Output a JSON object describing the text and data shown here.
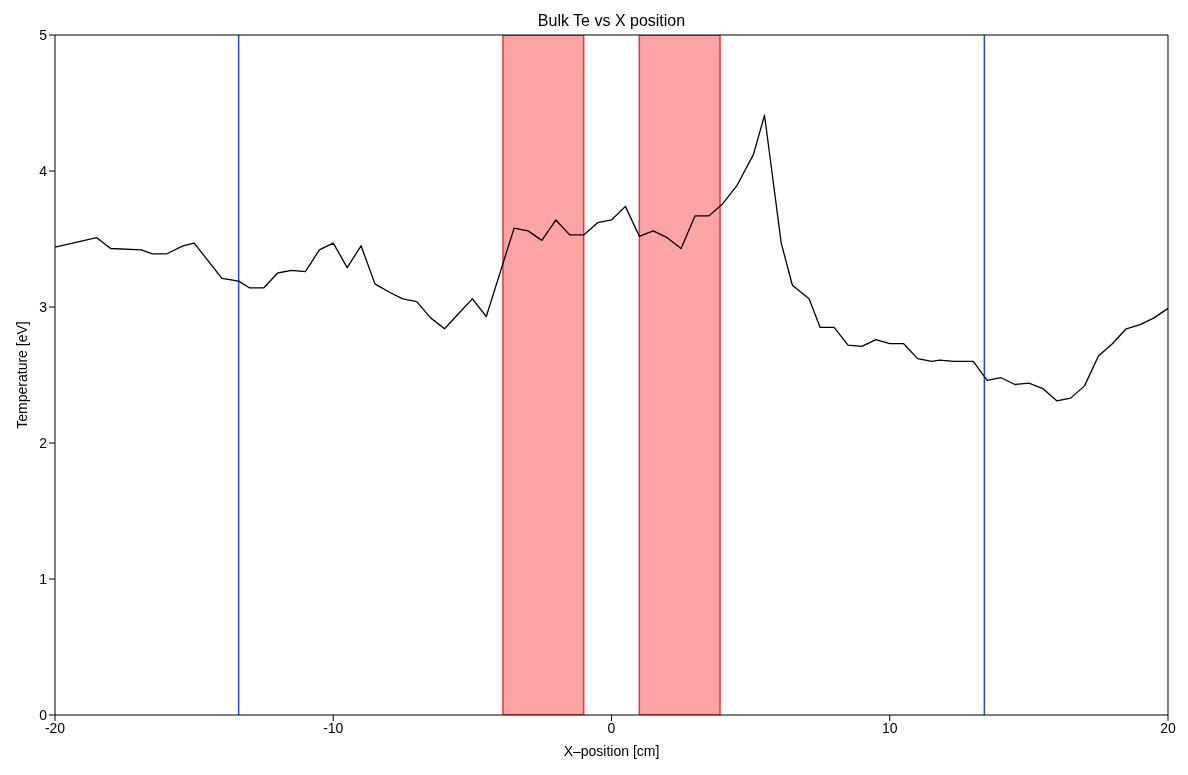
{
  "chart_data": {
    "type": "line",
    "title": "Bulk Te vs X position",
    "xlabel": "X–position [cm]",
    "ylabel": "Temperature [eV]",
    "xlim": [
      -20,
      20
    ],
    "xticks": [
      -20,
      -10,
      0,
      10,
      20
    ],
    "ylim": [
      0,
      5
    ],
    "yticks": [
      0,
      1,
      2,
      3,
      4,
      5
    ],
    "grid": false,
    "marker": "none",
    "line_style": "solid",
    "series": [
      {
        "color": "#000000",
        "x": [
          -20,
          -18.5,
          -18,
          -16.9,
          -16.5,
          -16,
          -15.4,
          -15,
          -14,
          -13.4,
          -13,
          -12.5,
          -12,
          -11.5,
          -11,
          -10.5,
          -10,
          -9.5,
          -9,
          -8.5,
          -8,
          -7.5,
          -7,
          -6.5,
          -6,
          -5.5,
          -5,
          -4.5,
          -3.5,
          -3,
          -2.5,
          -2,
          -1.5,
          -1,
          -0.5,
          0,
          0.5,
          1,
          1.5,
          2,
          2.5,
          3,
          3.5,
          4,
          4.5,
          5.1,
          5.5,
          6.1,
          6.5,
          7.1,
          7.5,
          8,
          8.5,
          9,
          9.5,
          10,
          10.5,
          11,
          11.5,
          11.8,
          12.3,
          13,
          13.5,
          14,
          14.5,
          15,
          15.5,
          16,
          16.5,
          17,
          17.5,
          18,
          18.5,
          19,
          19.5,
          20
        ],
        "values": [
          3.44,
          3.51,
          3.43,
          3.42,
          3.39,
          3.39,
          3.45,
          3.47,
          3.21,
          3.19,
          3.14,
          3.14,
          3.25,
          3.27,
          3.26,
          3.42,
          3.47,
          3.29,
          3.45,
          3.17,
          3.11,
          3.06,
          3.04,
          2.92,
          2.84,
          2.95,
          3.06,
          2.93,
          3.58,
          3.56,
          3.49,
          3.64,
          3.53,
          3.53,
          3.62,
          3.64,
          3.74,
          3.52,
          3.56,
          3.51,
          3.43,
          3.67,
          3.67,
          3.76,
          3.89,
          4.12,
          4.41,
          3.47,
          3.16,
          3.06,
          2.85,
          2.85,
          2.72,
          2.71,
          2.76,
          2.73,
          2.73,
          2.62,
          2.6,
          2.61,
          2.6,
          2.6,
          2.46,
          2.48,
          2.43,
          2.44,
          2.4,
          2.31,
          2.33,
          2.42,
          2.64,
          2.73,
          2.84,
          2.87,
          2.92,
          2.99
        ]
      }
    ],
    "ref_lines": [
      {
        "axis": "x",
        "value": -13.4,
        "color": "#3344dd"
      },
      {
        "axis": "x",
        "value": 13.4,
        "color": "#3344dd"
      }
    ],
    "bands": [
      {
        "axis": "x",
        "from": -3.9,
        "to": -1,
        "color": "#fca3a3"
      },
      {
        "axis": "x",
        "from": 1,
        "to": 3.9,
        "color": "#fca3a3"
      }
    ]
  }
}
